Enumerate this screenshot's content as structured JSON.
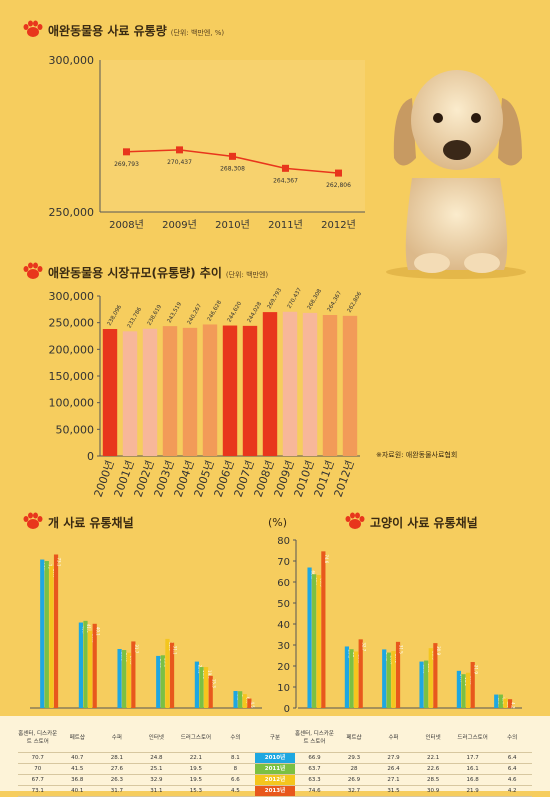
{
  "colors": {
    "background": "#f6cd5e",
    "accent": "#e8361c",
    "series": [
      "#1ea7e1",
      "#7bc043",
      "#f4c61e",
      "#e8581c"
    ]
  },
  "chart1": {
    "title": "애완동물용 사료 유통량",
    "unit": "(단위: 백만엔, %)"
  },
  "chart2": {
    "title": "애완동물용 시장규모(유통량) 추이",
    "unit": "(단위: 백만엔)",
    "source": "※자료원: 애완동물사료협회"
  },
  "chart3": {
    "title": "개 사료 유통채널"
  },
  "chart4": {
    "title": "고양이 사료 유통채널",
    "unit_label": "(%)"
  },
  "table": {
    "dog_headers": [
      "홈센터, 디스카운트 스토어",
      "페트샵",
      "수퍼",
      "인터넷",
      "드러그스토어",
      "수의"
    ],
    "cat_headers": [
      "홈센터, 디스카운트 스토어",
      "페트샵",
      "수퍼",
      "인터넷",
      "드러그스토어",
      "수의"
    ],
    "middle_header": "구분",
    "rows": [
      {
        "dog": [
          "70.7",
          "40.7",
          "28.1",
          "24.8",
          "22.1",
          "8.1"
        ],
        "year": "2010년",
        "cat": [
          "66.9",
          "29.3",
          "27.9",
          "22.1",
          "17.7",
          "6.4"
        ]
      },
      {
        "dog": [
          "70",
          "41.5",
          "27.6",
          "25.1",
          "19.5",
          "8"
        ],
        "year": "2011년",
        "cat": [
          "63.7",
          "28",
          "26.4",
          "22.6",
          "16.1",
          "6.4"
        ]
      },
      {
        "dog": [
          "67.7",
          "36.8",
          "26.3",
          "32.9",
          "19.5",
          "6.6"
        ],
        "year": "2012년",
        "cat": [
          "63.3",
          "26.9",
          "27.1",
          "28.5",
          "16.8",
          "4.6"
        ]
      },
      {
        "dog": [
          "73.1",
          "40.1",
          "31.7",
          "31.1",
          "15.3",
          "4.5"
        ],
        "year": "2013년",
        "cat": [
          "74.6",
          "32.7",
          "31.5",
          "30.9",
          "21.9",
          "4.2"
        ]
      }
    ]
  },
  "chart_data": [
    {
      "type": "line",
      "title": "애완동물용 사료 유통량",
      "categories": [
        "2008년",
        "2009년",
        "2010년",
        "2011년",
        "2012년"
      ],
      "values": [
        269793,
        270437,
        268308,
        264367,
        262806
      ],
      "value_labels": [
        "269,793",
        "270,437",
        "268,308",
        "264,367",
        "262,806"
      ],
      "y_ticks": [
        "300,000",
        "250,000"
      ],
      "ylim": [
        250000,
        300000
      ],
      "color": "#e8361c"
    },
    {
      "type": "bar",
      "title": "애완동물용 시장규모(유통량) 추이",
      "categories": [
        "2000년",
        "2001년",
        "2002년",
        "2003년",
        "2004년",
        "2005년",
        "2006년",
        "2007년",
        "2008년",
        "2009년",
        "2010년",
        "2011년",
        "2012년"
      ],
      "values": [
        238096,
        233786,
        238619,
        243519,
        240267,
        246628,
        244620,
        244028,
        269793,
        270437,
        268308,
        264367,
        262806
      ],
      "value_labels": [
        "238,096",
        "233,786",
        "238,619",
        "243,519",
        "240,267",
        "246,628",
        "244,620",
        "244,028",
        "269,793",
        "270,437",
        "268,308",
        "264,367",
        "262,806"
      ],
      "bar_colors": [
        "#e8361c",
        "#f7b79a",
        "#f7b79a",
        "#f29b58",
        "#f29b58",
        "#f29b58",
        "#e8361c",
        "#e8361c",
        "#e8361c",
        "#f7b79a",
        "#f7b79a",
        "#f29b58",
        "#f29b58"
      ],
      "y_ticks": [
        "0",
        "50,000",
        "100,000",
        "150,000",
        "200,000",
        "250,000",
        "300,000"
      ],
      "ylim": [
        0,
        300000
      ]
    },
    {
      "type": "bar",
      "title": "개 사료 유통채널",
      "categories": [
        "홈센터, 디스카운트 스토어",
        "페트샵",
        "수퍼",
        "인터넷",
        "드러그스토어",
        "수의"
      ],
      "series": [
        {
          "name": "2010년",
          "values": [
            70.7,
            40.7,
            28.1,
            24.8,
            22.1,
            8.1
          ]
        },
        {
          "name": "2011년",
          "values": [
            70,
            41.5,
            27.6,
            25.1,
            19.5,
            8
          ]
        },
        {
          "name": "2012년",
          "values": [
            67.7,
            36.8,
            26.3,
            32.9,
            19.5,
            6.6
          ]
        },
        {
          "name": "2013년",
          "values": [
            73.1,
            40.1,
            31.7,
            31.1,
            15.3,
            4.5
          ]
        }
      ],
      "ylim": [
        0,
        80
      ]
    },
    {
      "type": "bar",
      "title": "고양이 사료 유통채널",
      "categories": [
        "홈센터, 디스카운트 스토어",
        "페트샵",
        "수퍼",
        "인터넷",
        "드러그스토어",
        "수의"
      ],
      "series": [
        {
          "name": "2010년",
          "values": [
            66.9,
            29.3,
            27.9,
            22.1,
            17.7,
            6.4
          ]
        },
        {
          "name": "2011년",
          "values": [
            63.7,
            28,
            26.4,
            22.6,
            16.1,
            6.4
          ]
        },
        {
          "name": "2012년",
          "values": [
            63.3,
            26.9,
            27.1,
            28.5,
            16.8,
            4.6
          ]
        },
        {
          "name": "2013년",
          "values": [
            74.6,
            32.7,
            31.5,
            30.9,
            21.9,
            4.2
          ]
        }
      ],
      "y_ticks": [
        "0",
        "10",
        "20",
        "30",
        "40",
        "50",
        "60",
        "70",
        "80"
      ],
      "ylim": [
        0,
        80
      ]
    }
  ]
}
